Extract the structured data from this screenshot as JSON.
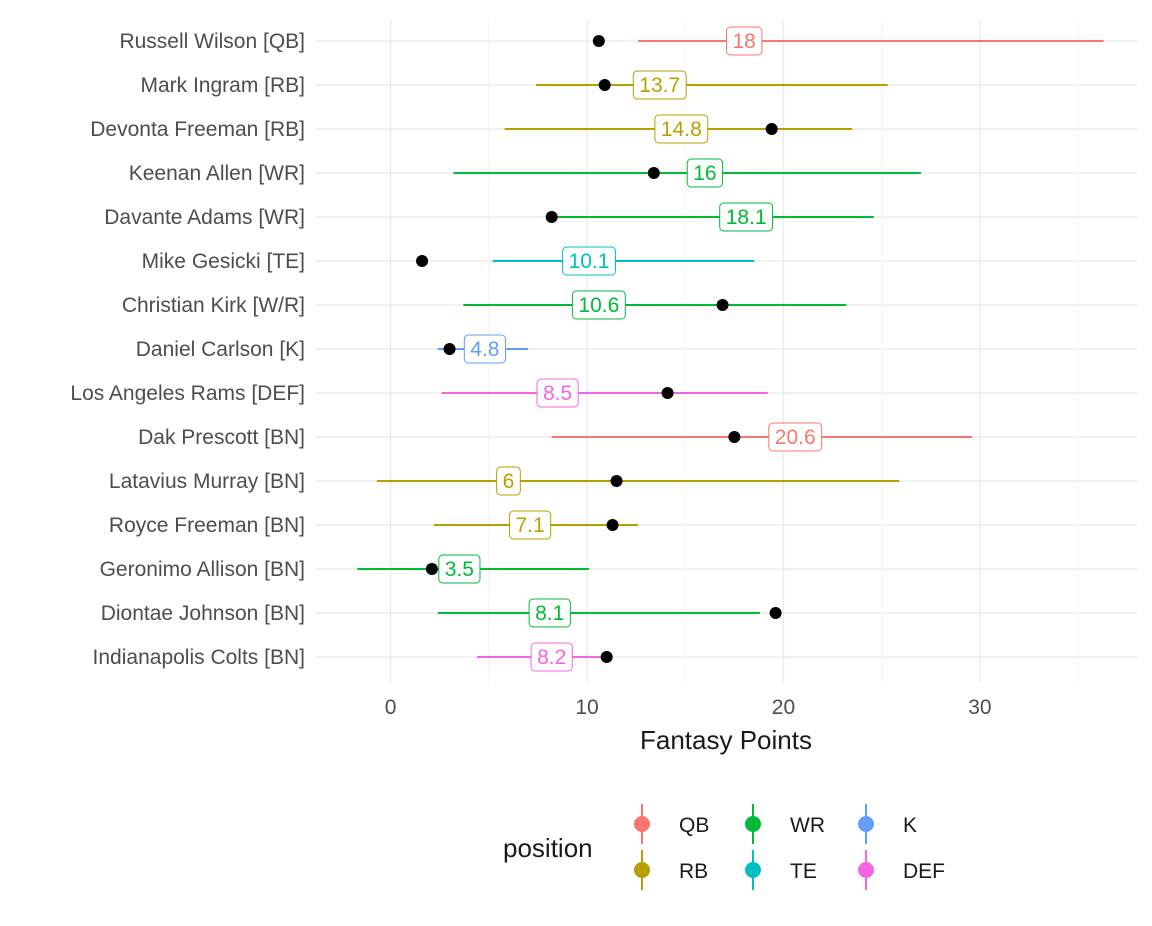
{
  "chart_data": {
    "type": "scatter",
    "subtype": "point-range with labels",
    "xlabel": "Fantasy Points",
    "xlim": [
      -3.8,
      38
    ],
    "x_ticks": [
      0,
      10,
      20,
      30
    ],
    "grid": true,
    "legend": {
      "title": "position",
      "placement": "bottom",
      "entries": [
        {
          "label": "QB",
          "color": "#F8766D"
        },
        {
          "label": "RB",
          "color": "#B79F00"
        },
        {
          "label": "WR",
          "color": "#00BA38"
        },
        {
          "label": "TE",
          "color": "#00BFC4"
        },
        {
          "label": "K",
          "color": "#619CFF"
        },
        {
          "label": "DEF",
          "color": "#F564E3"
        }
      ]
    },
    "point_color": "#000000",
    "rows": [
      {
        "player": "Russell Wilson [QB]",
        "position": "QB",
        "low": 12.6,
        "high": 36.3,
        "projected": 18,
        "actual": 10.6
      },
      {
        "player": "Mark Ingram [RB]",
        "position": "RB",
        "low": 7.4,
        "high": 25.3,
        "projected": 13.7,
        "actual": 10.9
      },
      {
        "player": "Devonta Freeman [RB]",
        "position": "RB",
        "low": 5.8,
        "high": 23.5,
        "projected": 14.8,
        "actual": 19.4
      },
      {
        "player": "Keenan Allen [WR]",
        "position": "WR",
        "low": 3.2,
        "high": 27.0,
        "projected": 16,
        "actual": 13.4
      },
      {
        "player": "Davante Adams [WR]",
        "position": "WR",
        "low": 8.3,
        "high": 24.6,
        "projected": 18.1,
        "actual": 8.2
      },
      {
        "player": "Mike Gesicki [TE]",
        "position": "TE",
        "low": 5.2,
        "high": 18.5,
        "projected": 10.1,
        "actual": 1.6
      },
      {
        "player": "Christian Kirk [W/R]",
        "position": "WR",
        "low": 3.7,
        "high": 23.2,
        "projected": 10.6,
        "actual": 16.9
      },
      {
        "player": "Daniel Carlson [K]",
        "position": "K",
        "low": 2.4,
        "high": 7.0,
        "projected": 4.8,
        "actual": 3.0
      },
      {
        "player": "Los Angeles Rams [DEF]",
        "position": "DEF",
        "low": 2.6,
        "high": 19.2,
        "projected": 8.5,
        "actual": 14.1
      },
      {
        "player": "Dak Prescott [BN]",
        "position": "QB",
        "low": 8.2,
        "high": 29.6,
        "projected": 20.6,
        "actual": 17.5
      },
      {
        "player": "Latavius Murray [BN]",
        "position": "RB",
        "low": -0.7,
        "high": 25.9,
        "projected": 6,
        "actual": 11.5
      },
      {
        "player": "Royce Freeman [BN]",
        "position": "RB",
        "low": 2.2,
        "high": 12.6,
        "projected": 7.1,
        "actual": 11.3
      },
      {
        "player": "Geronimo Allison [BN]",
        "position": "WR",
        "low": -1.7,
        "high": 10.1,
        "projected": 3.5,
        "actual": 2.1
      },
      {
        "player": "Diontae Johnson [BN]",
        "position": "WR",
        "low": 2.4,
        "high": 18.8,
        "projected": 8.1,
        "actual": 19.6
      },
      {
        "player": "Indianapolis Colts [BN]",
        "position": "DEF",
        "low": 4.4,
        "high": 10.9,
        "projected": 8.2,
        "actual": 11.0
      }
    ]
  }
}
